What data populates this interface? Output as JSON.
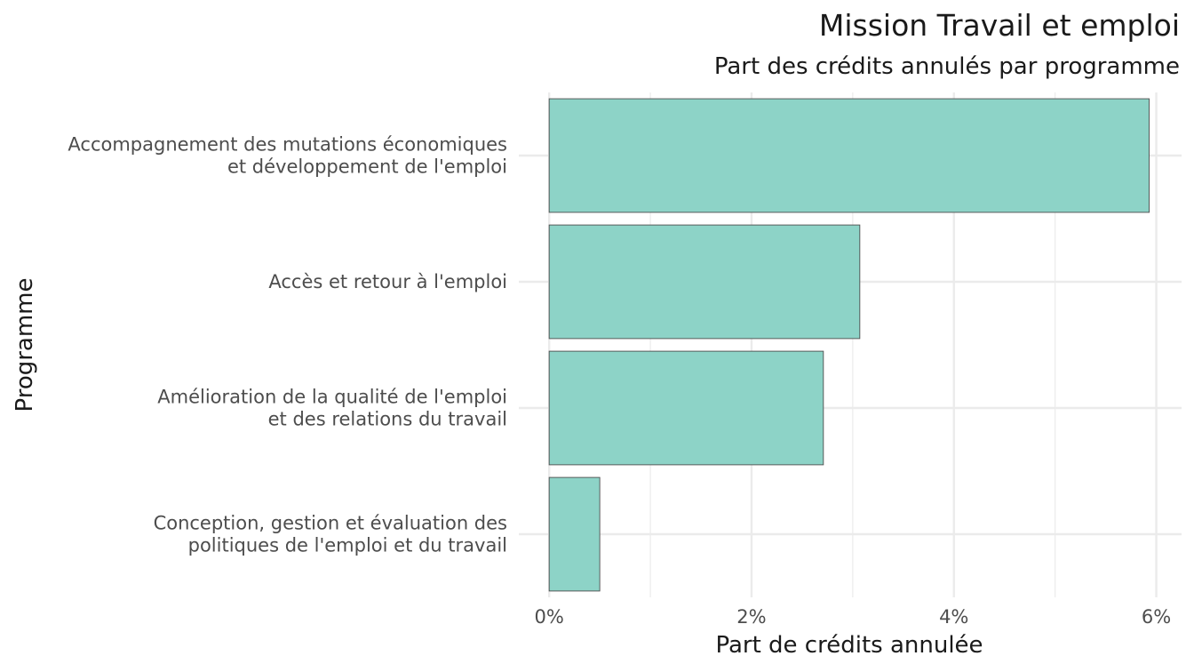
{
  "chart_data": {
    "type": "bar",
    "orientation": "horizontal",
    "title": "Mission Travail et emploi",
    "subtitle": "Part des crédits annulés par programme",
    "xlabel": "Part de crédits annulée",
    "ylabel": "Programme",
    "categories": [
      [
        "Accompagnement des mutations économiques",
        "et développement de l'emploi"
      ],
      [
        "Accès et retour à l'emploi"
      ],
      [
        "Amélioration de la qualité de l'emploi",
        "et des relations du travail"
      ],
      [
        "Conception, gestion et évaluation des",
        "politiques de l'emploi et du travail"
      ]
    ],
    "values": [
      5.93,
      3.07,
      2.71,
      0.5
    ],
    "xlim": [
      -0.3,
      6.25
    ],
    "x_ticks": [
      0,
      2,
      4,
      6
    ],
    "x_tick_labels": [
      "0%",
      "2%",
      "4%",
      "6%"
    ],
    "bar_color": "#8dd3c7",
    "bar_outline_color": "#4d4d4d",
    "grid": true,
    "legend": "none"
  }
}
